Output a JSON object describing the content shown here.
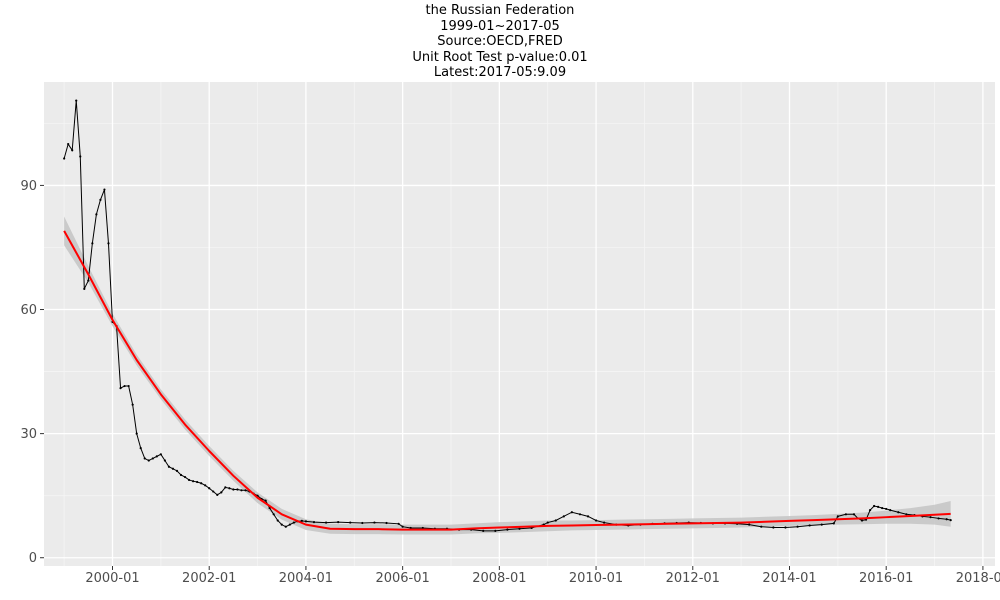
{
  "chart_data": {
    "type": "line",
    "title": "the Russian Federation",
    "subtitle_lines": [
      "1999-01~2017-05",
      "Source:OECD,FRED",
      "Unit Root Test p-value:0.01",
      "Latest:2017-05:9.09"
    ],
    "xlabel": "",
    "ylabel": "",
    "grid": true,
    "xlim": [
      "1998-08",
      "2018-04"
    ],
    "ylim": [
      -2,
      115
    ],
    "y_ticks": [
      0,
      30,
      60,
      90
    ],
    "x_ticks": [
      "2000-01",
      "2002-01",
      "2004-01",
      "2006-01",
      "2008-01",
      "2010-01",
      "2012-01",
      "2014-01",
      "2016-01",
      "2018-01"
    ],
    "series": [
      {
        "kind": "observed",
        "color": "#000000",
        "points": [
          [
            "1999-01",
            96.5
          ],
          [
            "1999-02",
            100.0
          ],
          [
            "1999-03",
            98.5
          ],
          [
            "1999-04",
            110.5
          ],
          [
            "1999-05",
            97.0
          ],
          [
            "1999-06",
            65.0
          ],
          [
            "1999-07",
            67.0
          ],
          [
            "1999-08",
            76.0
          ],
          [
            "1999-09",
            83.0
          ],
          [
            "1999-10",
            86.5
          ],
          [
            "1999-11",
            89.0
          ],
          [
            "1999-12",
            76.0
          ],
          [
            "2000-01",
            57.0
          ],
          [
            "2000-02",
            56.0
          ],
          [
            "2000-03",
            41.0
          ],
          [
            "2000-04",
            41.5
          ],
          [
            "2000-05",
            41.5
          ],
          [
            "2000-06",
            37.0
          ],
          [
            "2000-07",
            30.0
          ],
          [
            "2000-08",
            26.5
          ],
          [
            "2000-09",
            24.0
          ],
          [
            "2000-10",
            23.5
          ],
          [
            "2000-11",
            24.0
          ],
          [
            "2000-12",
            24.5
          ],
          [
            "2001-01",
            25.0
          ],
          [
            "2001-02",
            23.5
          ],
          [
            "2001-03",
            22.0
          ],
          [
            "2001-04",
            21.5
          ],
          [
            "2001-05",
            21.0
          ],
          [
            "2001-06",
            20.0
          ],
          [
            "2001-07",
            19.5
          ],
          [
            "2001-08",
            18.8
          ],
          [
            "2001-09",
            18.5
          ],
          [
            "2001-10",
            18.3
          ],
          [
            "2001-11",
            18.0
          ],
          [
            "2001-12",
            17.5
          ],
          [
            "2002-01",
            16.8
          ],
          [
            "2002-02",
            16.0
          ],
          [
            "2002-03",
            15.2
          ],
          [
            "2002-04",
            15.8
          ],
          [
            "2002-05",
            17.0
          ],
          [
            "2002-06",
            16.8
          ],
          [
            "2002-07",
            16.5
          ],
          [
            "2002-08",
            16.5
          ],
          [
            "2002-09",
            16.3
          ],
          [
            "2002-10",
            16.3
          ],
          [
            "2002-11",
            16.0
          ],
          [
            "2002-12",
            15.5
          ],
          [
            "2003-01",
            15.0
          ],
          [
            "2003-02",
            14.2
          ],
          [
            "2003-03",
            13.8
          ],
          [
            "2003-04",
            12.0
          ],
          [
            "2003-05",
            10.5
          ],
          [
            "2003-06",
            9.0
          ],
          [
            "2003-07",
            8.0
          ],
          [
            "2003-08",
            7.5
          ],
          [
            "2003-09",
            8.0
          ],
          [
            "2003-10",
            8.5
          ],
          [
            "2003-11",
            8.8
          ],
          [
            "2003-12",
            8.9
          ],
          [
            "2004-01",
            8.8
          ],
          [
            "2004-03",
            8.6
          ],
          [
            "2004-06",
            8.5
          ],
          [
            "2004-09",
            8.6
          ],
          [
            "2004-12",
            8.5
          ],
          [
            "2005-03",
            8.4
          ],
          [
            "2005-06",
            8.5
          ],
          [
            "2005-09",
            8.4
          ],
          [
            "2005-12",
            8.2
          ],
          [
            "2006-01",
            7.5
          ],
          [
            "2006-03",
            7.2
          ],
          [
            "2006-06",
            7.2
          ],
          [
            "2006-09",
            7.0
          ],
          [
            "2006-12",
            7.0
          ],
          [
            "2007-03",
            6.8
          ],
          [
            "2007-06",
            6.8
          ],
          [
            "2007-09",
            6.5
          ],
          [
            "2007-12",
            6.5
          ],
          [
            "2008-03",
            6.8
          ],
          [
            "2008-06",
            7.0
          ],
          [
            "2008-09",
            7.2
          ],
          [
            "2008-12",
            8.0
          ],
          [
            "2009-01",
            8.5
          ],
          [
            "2009-03",
            9.0
          ],
          [
            "2009-05",
            10.0
          ],
          [
            "2009-07",
            11.0
          ],
          [
            "2009-09",
            10.5
          ],
          [
            "2009-11",
            10.0
          ],
          [
            "2010-01",
            9.0
          ],
          [
            "2010-03",
            8.5
          ],
          [
            "2010-06",
            8.0
          ],
          [
            "2010-09",
            7.8
          ],
          [
            "2010-12",
            8.0
          ],
          [
            "2011-03",
            8.2
          ],
          [
            "2011-06",
            8.3
          ],
          [
            "2011-09",
            8.4
          ],
          [
            "2011-12",
            8.5
          ],
          [
            "2012-03",
            8.4
          ],
          [
            "2012-06",
            8.3
          ],
          [
            "2012-09",
            8.3
          ],
          [
            "2012-12",
            8.2
          ],
          [
            "2013-03",
            8.0
          ],
          [
            "2013-06",
            7.5
          ],
          [
            "2013-09",
            7.3
          ],
          [
            "2013-12",
            7.3
          ],
          [
            "2014-03",
            7.5
          ],
          [
            "2014-06",
            7.8
          ],
          [
            "2014-09",
            8.0
          ],
          [
            "2014-12",
            8.3
          ],
          [
            "2015-01",
            10.0
          ],
          [
            "2015-03",
            10.5
          ],
          [
            "2015-05",
            10.5
          ],
          [
            "2015-06",
            9.5
          ],
          [
            "2015-07",
            9.0
          ],
          [
            "2015-08",
            9.2
          ],
          [
            "2015-09",
            11.5
          ],
          [
            "2015-10",
            12.5
          ],
          [
            "2015-11",
            12.3
          ],
          [
            "2015-12",
            12.0
          ],
          [
            "2016-01",
            11.8
          ],
          [
            "2016-02",
            11.5
          ],
          [
            "2016-04",
            11.0
          ],
          [
            "2016-06",
            10.5
          ],
          [
            "2016-08",
            10.3
          ],
          [
            "2016-10",
            10.0
          ],
          [
            "2016-12",
            9.8
          ],
          [
            "2017-02",
            9.5
          ],
          [
            "2017-04",
            9.3
          ],
          [
            "2017-05",
            9.09
          ]
        ]
      },
      {
        "kind": "smooth_fit",
        "color": "#ff0000",
        "band_color": "#c4c4c4",
        "points": [
          [
            "1999-01",
            79.0,
            75.5,
            82.5
          ],
          [
            "1999-07",
            68.5,
            66.5,
            70.5
          ],
          [
            "2000-01",
            57.5,
            56.0,
            59.0
          ],
          [
            "2000-07",
            47.8,
            46.5,
            49.1
          ],
          [
            "2001-01",
            39.5,
            38.3,
            40.7
          ],
          [
            "2001-07",
            32.2,
            31.0,
            33.4
          ],
          [
            "2002-01",
            25.8,
            24.6,
            27.0
          ],
          [
            "2002-07",
            19.8,
            18.6,
            21.0
          ],
          [
            "2003-01",
            14.5,
            13.2,
            15.8
          ],
          [
            "2003-07",
            10.5,
            9.2,
            11.8
          ],
          [
            "2004-01",
            8.0,
            6.7,
            9.3
          ],
          [
            "2004-07",
            7.0,
            5.8,
            8.2
          ],
          [
            "2005-01",
            6.9,
            5.7,
            8.1
          ],
          [
            "2005-07",
            6.9,
            5.7,
            8.1
          ],
          [
            "2006-01",
            6.8,
            5.6,
            8.0
          ],
          [
            "2006-07",
            6.8,
            5.6,
            8.0
          ],
          [
            "2007-01",
            6.8,
            5.6,
            8.0
          ],
          [
            "2007-07",
            7.1,
            5.9,
            8.3
          ],
          [
            "2008-01",
            7.3,
            6.0,
            8.6
          ],
          [
            "2008-07",
            7.5,
            6.2,
            8.8
          ],
          [
            "2009-01",
            7.7,
            6.4,
            9.0
          ],
          [
            "2009-07",
            7.8,
            6.6,
            9.0
          ],
          [
            "2010-01",
            7.9,
            6.7,
            9.1
          ],
          [
            "2010-07",
            8.0,
            6.8,
            9.2
          ],
          [
            "2011-01",
            8.1,
            6.9,
            9.3
          ],
          [
            "2011-07",
            8.2,
            7.0,
            9.4
          ],
          [
            "2012-01",
            8.3,
            7.1,
            9.5
          ],
          [
            "2012-07",
            8.4,
            7.2,
            9.6
          ],
          [
            "2013-01",
            8.5,
            7.3,
            9.7
          ],
          [
            "2013-07",
            8.7,
            7.5,
            9.9
          ],
          [
            "2014-01",
            8.9,
            7.7,
            10.1
          ],
          [
            "2014-07",
            9.1,
            7.9,
            10.3
          ],
          [
            "2015-01",
            9.3,
            8.0,
            10.6
          ],
          [
            "2015-07",
            9.5,
            8.1,
            10.9
          ],
          [
            "2016-01",
            9.8,
            8.2,
            11.4
          ],
          [
            "2016-07",
            10.1,
            8.2,
            12.0
          ],
          [
            "2017-01",
            10.4,
            8.0,
            12.8
          ],
          [
            "2017-05",
            10.6,
            7.5,
            13.7
          ]
        ]
      }
    ]
  }
}
